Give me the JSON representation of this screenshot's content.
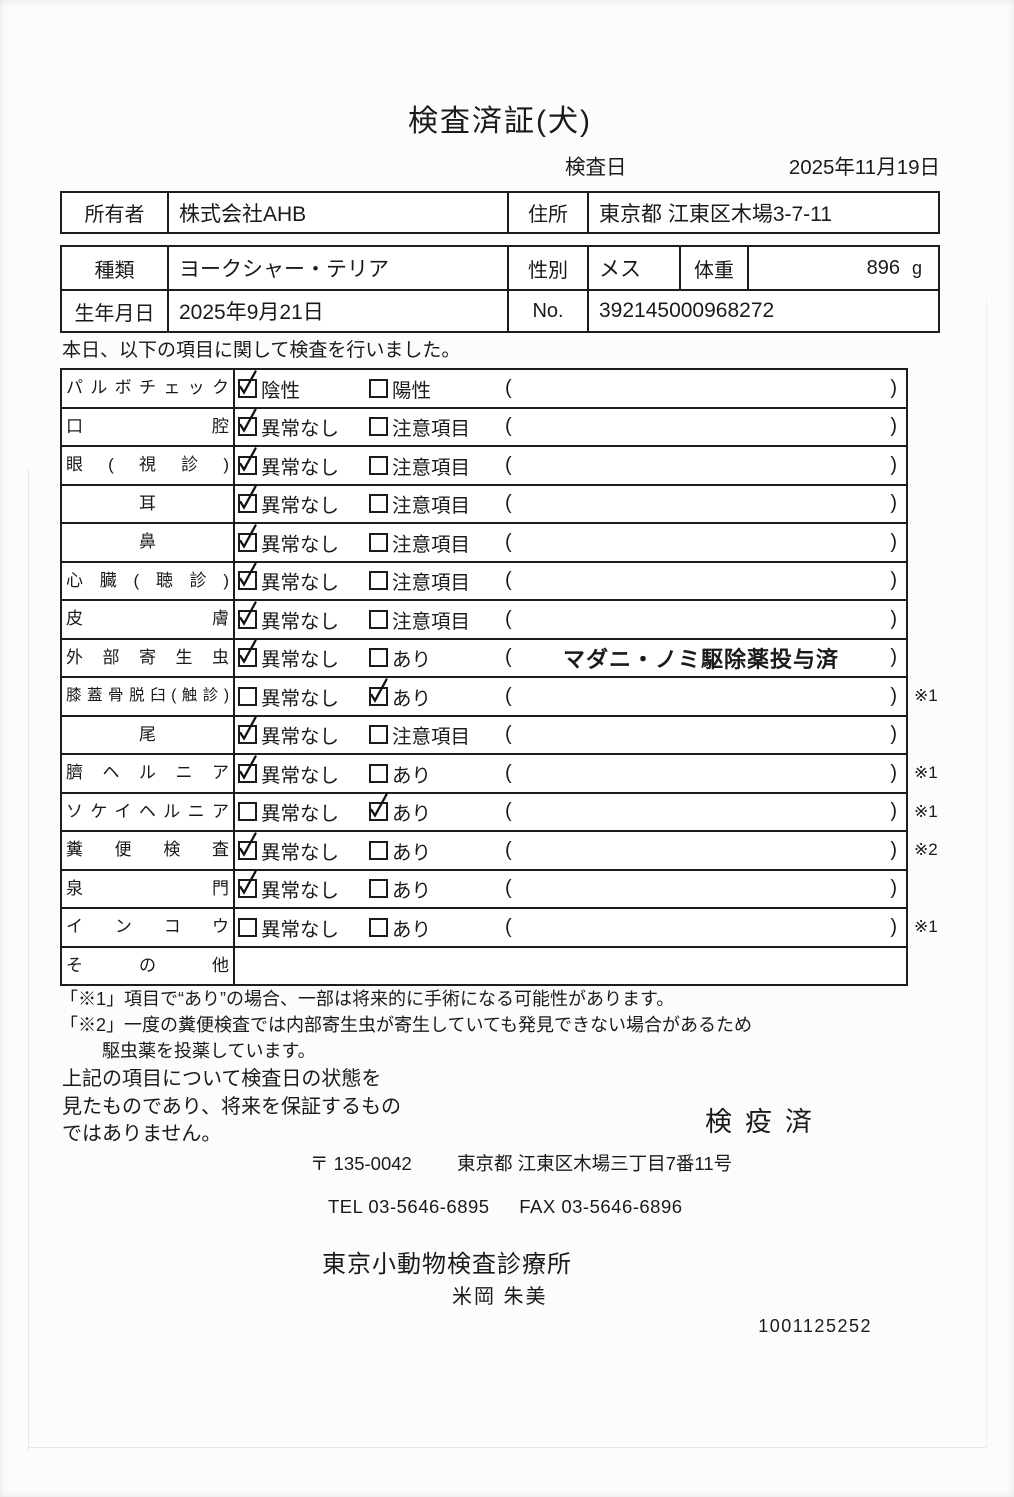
{
  "header": {
    "title": "検査済証(犬)",
    "exam_date_label": "検査日",
    "exam_date_value": "2025年11月19日"
  },
  "owner_table": {
    "owner_label": "所有者",
    "owner_value": "株式会社AHB",
    "address_label": "住所",
    "address_value": "東京都 江東区木場3-7-11"
  },
  "animal_table": {
    "breed_label": "種類",
    "breed_value": "ヨークシャー・テリア",
    "sex_label": "性別",
    "sex_value": "メス",
    "weight_label": "体重",
    "weight_value": "896",
    "weight_unit": "g",
    "birth_label": "生年月日",
    "birth_value": "2025年9月21日",
    "no_label": "No.",
    "no_value": "392145000968272"
  },
  "inspection": {
    "intro": "本日、以下の項目に関して検査を行いました。",
    "paren_open": "(",
    "paren_close": ")",
    "check_icon": "handwritten-check",
    "rows": [
      {
        "label": "パルボチェック",
        "opt1": "陰性",
        "opt1_checked": true,
        "opt2": "陽性",
        "opt2_checked": false,
        "paren": "",
        "remark": ""
      },
      {
        "label": "口腔",
        "opt1": "異常なし",
        "opt1_checked": true,
        "opt2": "注意項目",
        "opt2_checked": false,
        "paren": "",
        "remark": ""
      },
      {
        "label": "眼(視診)",
        "opt1": "異常なし",
        "opt1_checked": true,
        "opt2": "注意項目",
        "opt2_checked": false,
        "paren": "",
        "remark": ""
      },
      {
        "label": "耳",
        "align": "center",
        "opt1": "異常なし",
        "opt1_checked": true,
        "opt2": "注意項目",
        "opt2_checked": false,
        "paren": "",
        "remark": ""
      },
      {
        "label": "鼻",
        "align": "center",
        "opt1": "異常なし",
        "opt1_checked": true,
        "opt2": "注意項目",
        "opt2_checked": false,
        "paren": "",
        "remark": ""
      },
      {
        "label": "心臓(聴診)",
        "opt1": "異常なし",
        "opt1_checked": true,
        "opt2": "注意項目",
        "opt2_checked": false,
        "paren": "",
        "remark": ""
      },
      {
        "label": "皮膚",
        "opt1": "異常なし",
        "opt1_checked": true,
        "opt2": "注意項目",
        "opt2_checked": false,
        "paren": "",
        "remark": ""
      },
      {
        "label": "外部寄生虫",
        "opt1": "異常なし",
        "opt1_checked": true,
        "opt2": "あり",
        "opt2_checked": false,
        "paren": "マダニ・ノミ駆除薬投与済",
        "remark": ""
      },
      {
        "label": "膝蓋骨脱臼(触診)",
        "small": true,
        "opt1": "異常なし",
        "opt1_checked": false,
        "opt2": "あり",
        "opt2_checked": true,
        "paren": "",
        "remark": "※1"
      },
      {
        "label": "尾",
        "align": "center",
        "opt1": "異常なし",
        "opt1_checked": true,
        "opt2": "注意項目",
        "opt2_checked": false,
        "paren": "",
        "remark": ""
      },
      {
        "label": "臍ヘルニア",
        "opt1": "異常なし",
        "opt1_checked": true,
        "opt2": "あり",
        "opt2_checked": false,
        "paren": "",
        "remark": "※1"
      },
      {
        "label": "ソケイヘルニア",
        "opt1": "異常なし",
        "opt1_checked": false,
        "opt2": "あり",
        "opt2_checked": true,
        "paren": "",
        "remark": "※1"
      },
      {
        "label": "糞便検査",
        "opt1": "異常なし",
        "opt1_checked": true,
        "opt2": "あり",
        "opt2_checked": false,
        "paren": "",
        "remark": "※2"
      },
      {
        "label": "泉門",
        "opt1": "異常なし",
        "opt1_checked": true,
        "opt2": "あり",
        "opt2_checked": false,
        "paren": "",
        "remark": ""
      },
      {
        "label": "インコウ",
        "opt1": "異常なし",
        "opt1_checked": false,
        "opt2": "あり",
        "opt2_checked": false,
        "paren": "",
        "remark": "※1"
      },
      {
        "label": "その他",
        "no_options": true,
        "remark": ""
      }
    ]
  },
  "notes": {
    "note1": "「※1」項目で“あり”の場合、一部は将来的に手術になる可能性があります。",
    "note2_line1": "「※2」一度の糞便検査では内部寄生虫が寄生していても発見できない場合があるため",
    "note2_line2": "駆虫薬を投薬しています。"
  },
  "disclaimer": {
    "line1": "上記の項目について検査日の状態を",
    "line2": "見たものであり、将来を保証するもの",
    "line3": "ではありません。"
  },
  "stamp_text": "検疫済",
  "footer": {
    "postal_code": "〒 135-0042",
    "address": "東京都 江東区木場三丁目7番11号",
    "tel": "TEL 03-5646-6895",
    "fax": "FAX 03-5646-6896",
    "clinic_name": "東京小動物検査診療所",
    "vet_name": "米岡 朱美",
    "serial": "1001125252"
  }
}
